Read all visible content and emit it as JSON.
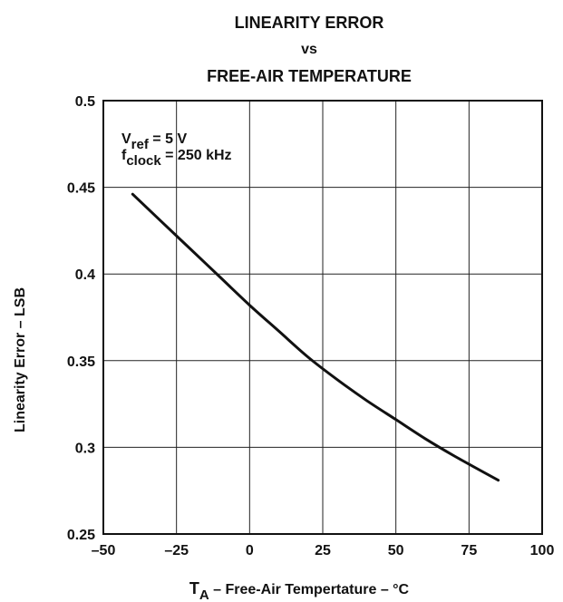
{
  "chart_data": {
    "type": "line",
    "title": {
      "line1": "LINEARITY ERROR",
      "line2": "vs",
      "line3": "FREE-AIR TEMPERATURE"
    },
    "xlabel": {
      "main": "T",
      "sub": "A",
      "rest": " – Free-Air Tempertature – °C"
    },
    "ylabel": "Linearity Error – LSB",
    "xlim": [
      -50,
      100
    ],
    "ylim": [
      0.25,
      0.5
    ],
    "xticks": [
      -50,
      -25,
      0,
      25,
      50,
      75,
      100
    ],
    "xtick_labels": [
      "–50",
      "–25",
      "0",
      "25",
      "50",
      "75",
      "100"
    ],
    "yticks": [
      0.25,
      0.3,
      0.35,
      0.4,
      0.45,
      0.5
    ],
    "ytick_labels": [
      "0.25",
      "0.3",
      "0.35",
      "0.4",
      "0.45",
      "0.5"
    ],
    "grid": true,
    "annotations": [
      {
        "main": "V",
        "sub": "ref",
        "rest": " = 5 V"
      },
      {
        "main": "f",
        "sub": "clock",
        "rest": " = 250 kHz"
      }
    ],
    "series": [
      {
        "color": "#111111",
        "x": [
          -40,
          -30,
          -20,
          -10,
          0,
          10,
          20,
          30,
          40,
          50,
          60,
          70,
          85
        ],
        "y": [
          0.446,
          0.43,
          0.414,
          0.398,
          0.382,
          0.367,
          0.352,
          0.339,
          0.327,
          0.316,
          0.305,
          0.295,
          0.281
        ]
      }
    ]
  }
}
